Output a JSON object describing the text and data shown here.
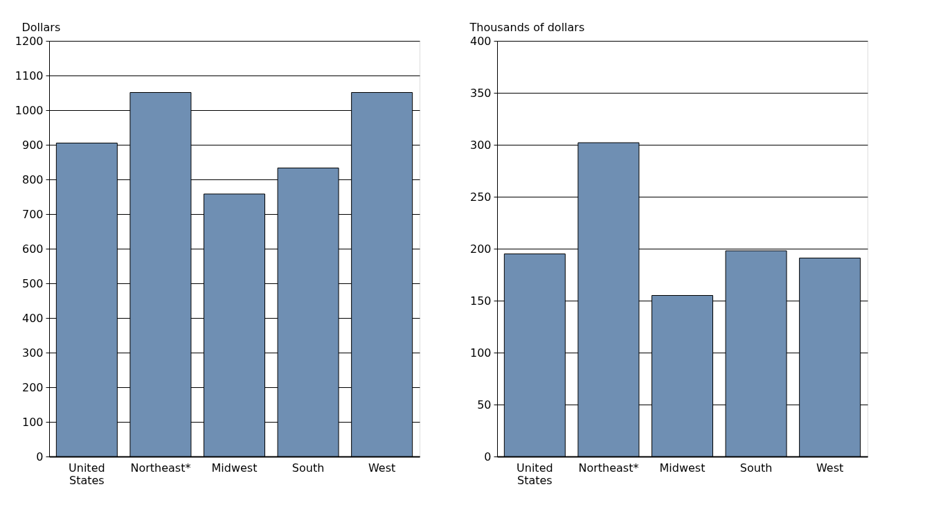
{
  "chart_data": [
    {
      "type": "bar",
      "ylabel": "Dollars",
      "categories": [
        "United States",
        "Northeast*",
        "Midwest",
        "South",
        "West"
      ],
      "values": [
        905,
        1051,
        758,
        833,
        1051
      ],
      "color": "#6f8fb3",
      "ylim": [
        0,
        1200
      ],
      "yticks": [
        0,
        100,
        200,
        300,
        400,
        500,
        600,
        700,
        800,
        900,
        1000,
        1100,
        1200
      ],
      "grid": "y"
    },
    {
      "type": "bar",
      "ylabel": "Thousands of dollars",
      "categories": [
        "United States",
        "Northeast*",
        "Midwest",
        "South",
        "West"
      ],
      "values": [
        195,
        302,
        155,
        198,
        191
      ],
      "color": "#6f8fb3",
      "ylim": [
        0,
        400
      ],
      "yticks": [
        0,
        50,
        100,
        150,
        200,
        250,
        300,
        350,
        400
      ],
      "grid": "y"
    }
  ]
}
